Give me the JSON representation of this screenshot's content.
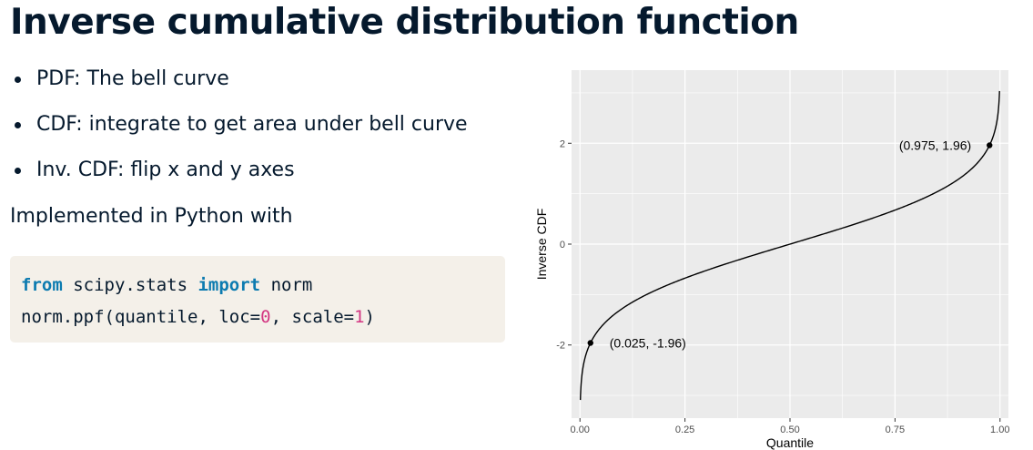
{
  "slide": {
    "title": "Inverse cumulative distribution function",
    "bullets": [
      "PDF: The bell curve",
      "CDF: integrate to get area under bell curve",
      "Inv. CDF: flip x and y axes"
    ],
    "implemented_text": "Implemented in Python with",
    "code": {
      "line1": {
        "kw1": "from",
        "mod": " scipy.stats ",
        "kw2": "import",
        "name": " norm"
      },
      "line2": {
        "pre": "norm.ppf(quantile, loc=",
        "loc": "0",
        "mid": ", scale=",
        "scale": "1",
        "post": ")"
      }
    }
  },
  "chart_data": {
    "type": "line",
    "function": "inverse standard normal CDF",
    "xlabel": "Quantile",
    "ylabel": "Inverse CDF",
    "xlim": [
      -0.02,
      1.02
    ],
    "ylim": [
      -3.45,
      3.45
    ],
    "x_ticks": [
      0,
      0.25,
      0.5,
      0.75,
      1
    ],
    "x_tick_labels": [
      "0.00",
      "0.25",
      "0.50",
      "0.75",
      "1.00"
    ],
    "y_ticks": [
      -2,
      0,
      2
    ],
    "y_tick_labels": [
      "-2",
      "0",
      "2"
    ],
    "x_range": [
      0.001,
      0.9988
    ],
    "points": [
      {
        "x": 0.025,
        "y": -1.96,
        "label": "(0.025, -1.96)"
      },
      {
        "x": 0.975,
        "y": 1.96,
        "label": "(0.975, 1.96)"
      }
    ],
    "panel_color": "#ebebeb",
    "grid": true
  }
}
